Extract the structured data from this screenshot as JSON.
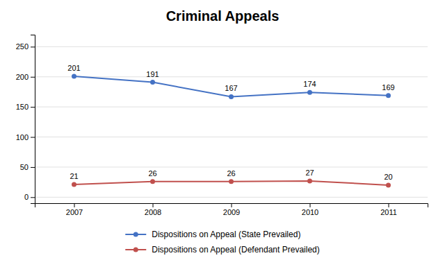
{
  "chart_data": {
    "type": "line",
    "title": "Criminal Appeals",
    "x": [
      2007,
      2008,
      2009,
      2010,
      2011
    ],
    "series": [
      {
        "name": "Dispositions on Appeal (State Prevailed)",
        "color": "#4472C4",
        "marker": "circle",
        "values": [
          201,
          191,
          167,
          174,
          169
        ]
      },
      {
        "name": "Dispositions on Appeal (Defendant Prevailed)",
        "color": "#C0504D",
        "marker": "circle",
        "values": [
          21,
          26,
          26,
          27,
          20
        ]
      }
    ],
    "xlim": [
      2006.5,
      2011.5
    ],
    "xticks": [
      2007,
      2008,
      2009,
      2010,
      2011
    ],
    "ylim": [
      -10,
      270
    ],
    "yticks": [
      0,
      50,
      100,
      150,
      200,
      250
    ],
    "grid": true,
    "data_labels": true,
    "legend": "bottom"
  }
}
